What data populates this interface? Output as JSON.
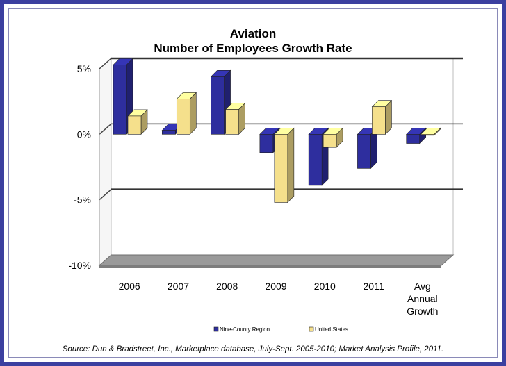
{
  "chart_data": {
    "type": "bar",
    "title": [
      "Aviation",
      "Number of Employees Growth Rate"
    ],
    "categories": [
      [
        "2006"
      ],
      [
        "2007"
      ],
      [
        "2008"
      ],
      [
        "2009"
      ],
      [
        "2010"
      ],
      [
        "2011"
      ],
      [
        "Avg",
        "Annual",
        "Growth"
      ]
    ],
    "series": [
      {
        "name": "Nine-County  Region",
        "color": "#2e2e9e",
        "values": [
          5.3,
          0.3,
          4.4,
          -1.4,
          -3.9,
          -2.6,
          -0.7
        ]
      },
      {
        "name": "United States",
        "color": "#f5e08c",
        "values": [
          1.4,
          2.7,
          1.9,
          -5.2,
          -1.0,
          2.1,
          0.0
        ]
      }
    ],
    "y_ticks": [
      "5%",
      "0%",
      "-5%",
      "-10%"
    ],
    "y_tick_values": [
      5,
      0,
      -5,
      -10
    ],
    "ylim": [
      -10,
      5
    ],
    "grid": true,
    "legend_position": "bottom",
    "source": "Source: Dun & Bradstreet, Inc., Marketplace database, July-Sept. 2005-2010; Market Analysis Profile, 2011."
  }
}
